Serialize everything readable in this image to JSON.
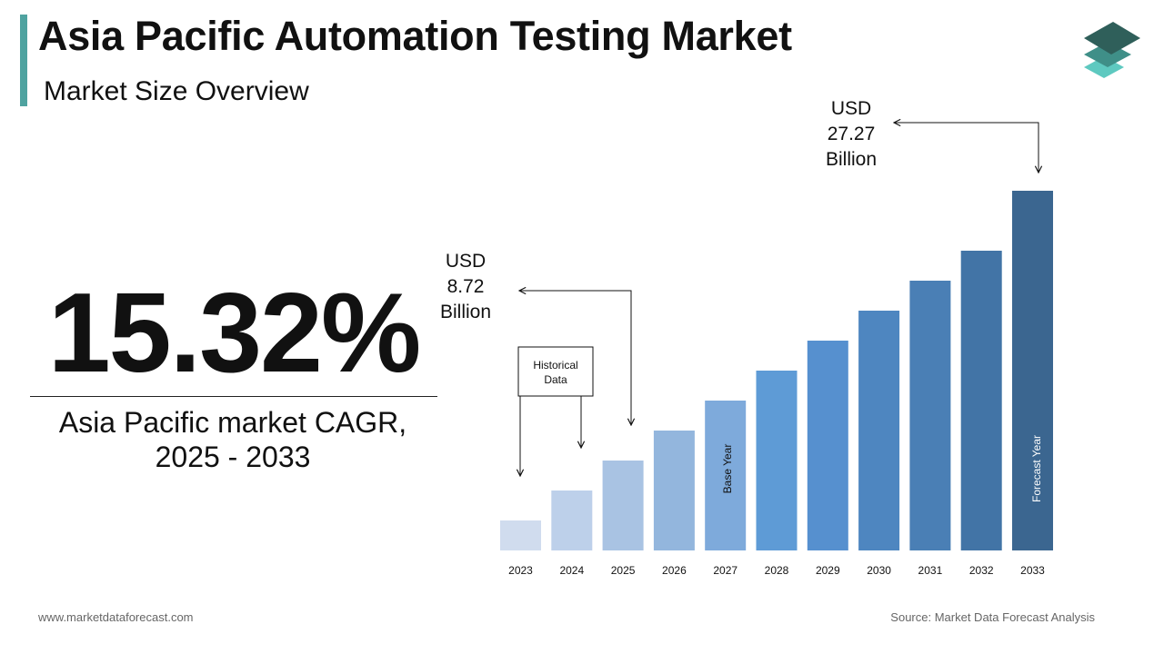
{
  "header": {
    "title": "Asia Pacific Automation Testing Market",
    "subtitle": "Market Size Overview"
  },
  "logo": {
    "icon": "stacked-layers-icon",
    "colors": [
      "#2f5f5a",
      "#3f8f88",
      "#5ec9c0"
    ]
  },
  "cagr": {
    "value": "15.32%",
    "label_line1": "Asia Pacific market CAGR,",
    "label_line2": "2025 - 2033"
  },
  "footer": {
    "website": "www.marketdataforecast.com",
    "source": "Source: Market Data Forecast Analysis"
  },
  "chart_data": {
    "type": "bar",
    "categories": [
      "2023",
      "2024",
      "2025",
      "2026",
      "2027",
      "2028",
      "2029",
      "2030",
      "2031",
      "2032",
      "2033"
    ],
    "values": [
      1.0,
      2.0,
      3.0,
      4.0,
      5.0,
      6.0,
      7.0,
      8.0,
      9.0,
      10.0,
      12.0
    ],
    "colors": [
      "#d0dcee",
      "#bdd0ea",
      "#a9c3e3",
      "#93b6dd",
      "#7eaadb",
      "#5e9bd6",
      "#5690cf",
      "#4e86c0",
      "#4a7fb5",
      "#4274a6",
      "#3b6690"
    ],
    "annotations": {
      "start_value": {
        "line1": "USD",
        "line2": "8.72",
        "line3": "Billion"
      },
      "end_value": {
        "line1": "USD",
        "line2": "27.27",
        "line3": "Billion"
      },
      "historical": {
        "line1": "Historical",
        "line2": "Data"
      },
      "base_year": "Base Year",
      "forecast_year": "Forecast Year"
    }
  }
}
